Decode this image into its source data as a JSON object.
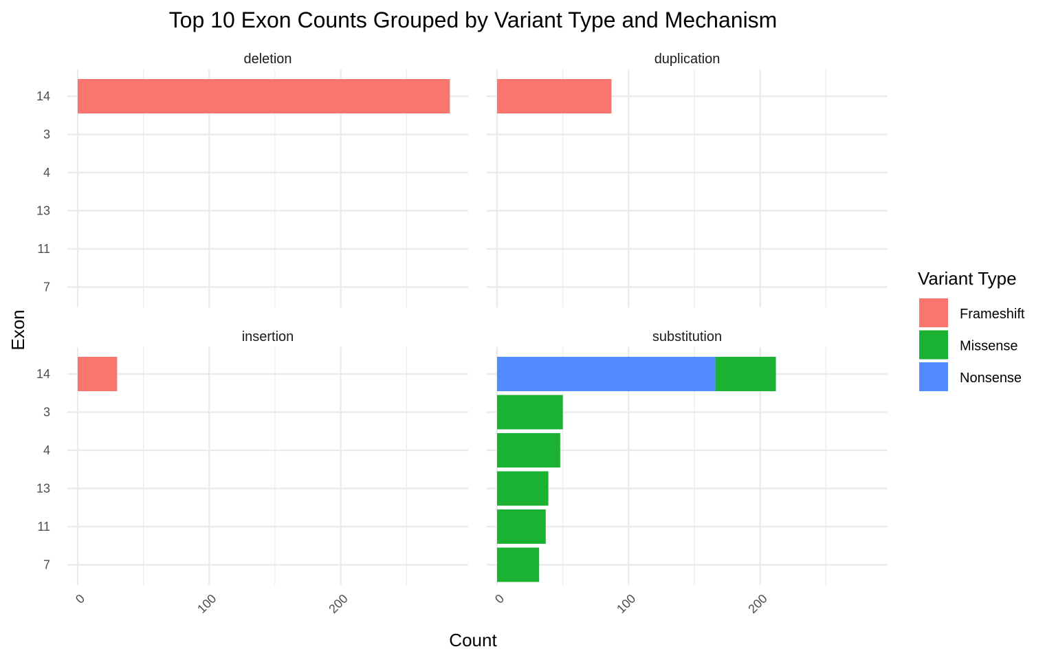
{
  "chart_data": {
    "type": "bar",
    "orientation": "horizontal",
    "stacked": true,
    "title": "Top 10 Exon Counts Grouped by Variant Type and Mechanism",
    "xlabel": "Count",
    "ylabel": "Exon",
    "categories": [
      "14",
      "3",
      "4",
      "13",
      "11",
      "7"
    ],
    "xlim": [
      0,
      280
    ],
    "x_ticks": [
      "0",
      "100",
      "200"
    ],
    "x_tick_values": [
      0,
      100,
      200
    ],
    "grid": true,
    "legend": {
      "title": "Variant Type",
      "position": "right",
      "entries": [
        {
          "name": "Frameshift",
          "color": "#F8766D"
        },
        {
          "name": "Missense",
          "color": "#1BB234"
        },
        {
          "name": "Nonsense",
          "color": "#528BFF"
        }
      ]
    },
    "facets": [
      {
        "label": "deletion",
        "bars": [
          {
            "category": "14",
            "segments": [
              {
                "type": "Frameshift",
                "value": 283
              }
            ]
          }
        ]
      },
      {
        "label": "duplication",
        "bars": [
          {
            "category": "14",
            "segments": [
              {
                "type": "Frameshift",
                "value": 87
              }
            ]
          }
        ]
      },
      {
        "label": "insertion",
        "bars": [
          {
            "category": "14",
            "segments": [
              {
                "type": "Frameshift",
                "value": 30
              }
            ]
          }
        ]
      },
      {
        "label": "substitution",
        "bars": [
          {
            "category": "14",
            "segments": [
              {
                "type": "Nonsense",
                "value": 166
              },
              {
                "type": "Missense",
                "value": 46
              }
            ]
          },
          {
            "category": "3",
            "segments": [
              {
                "type": "Missense",
                "value": 50
              }
            ]
          },
          {
            "category": "4",
            "segments": [
              {
                "type": "Missense",
                "value": 48
              }
            ]
          },
          {
            "category": "13",
            "segments": [
              {
                "type": "Missense",
                "value": 39
              }
            ]
          },
          {
            "category": "11",
            "segments": [
              {
                "type": "Missense",
                "value": 37
              }
            ]
          },
          {
            "category": "7",
            "segments": [
              {
                "type": "Missense",
                "value": 32
              }
            ]
          }
        ]
      }
    ]
  }
}
